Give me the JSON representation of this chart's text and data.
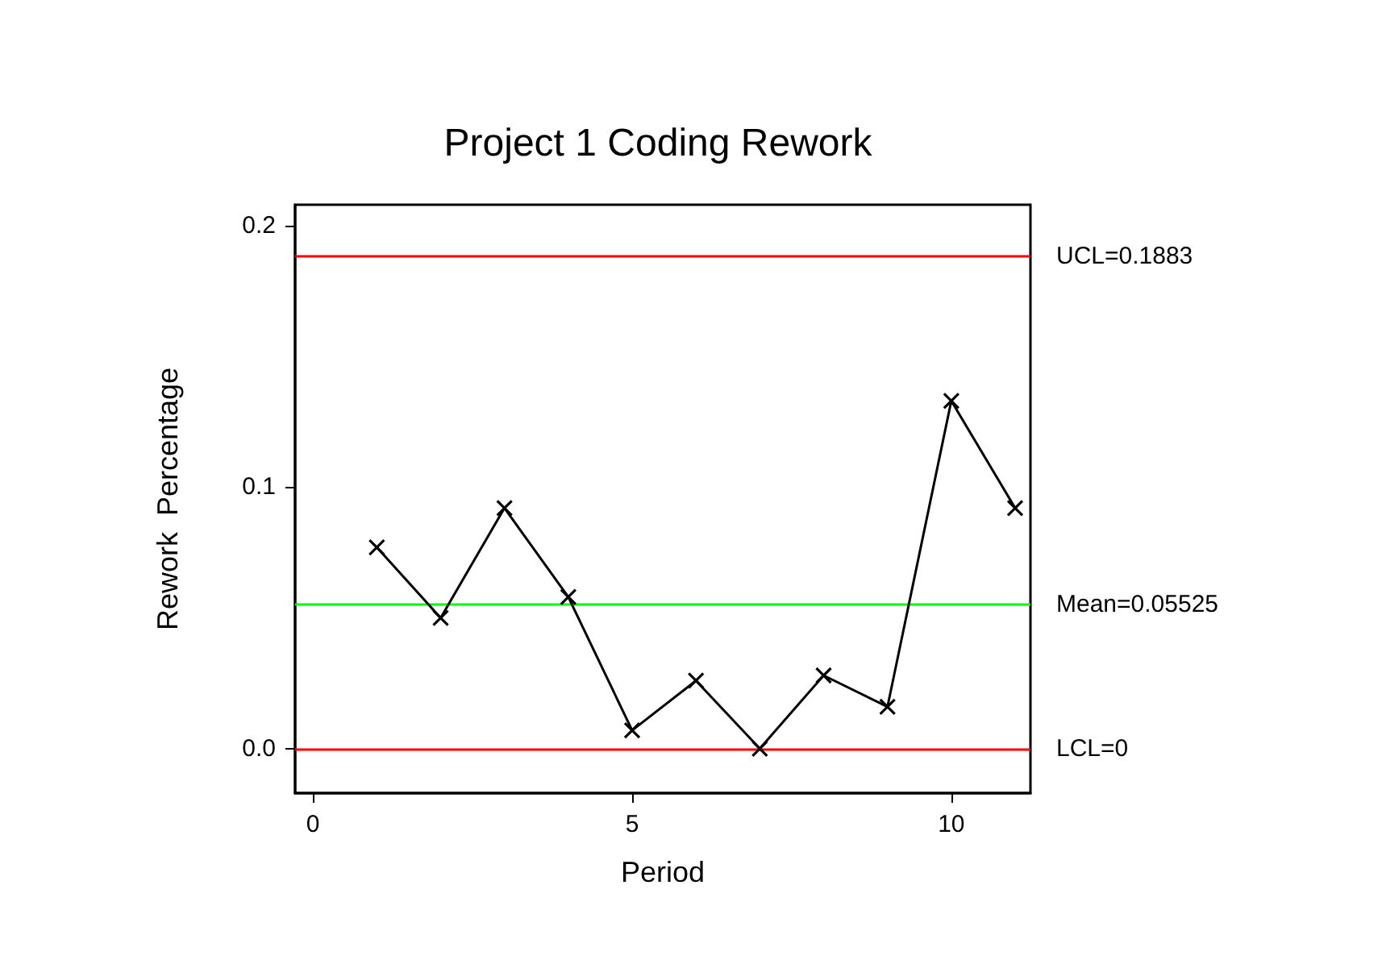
{
  "chart_data": {
    "type": "line",
    "title": "Project 1 Coding Rework",
    "xlabel": "Period",
    "ylabel": "Rework  Percentage",
    "x": [
      1,
      2,
      3,
      4,
      5,
      6,
      7,
      8,
      9,
      10,
      11
    ],
    "series": [
      {
        "color": "#000000",
        "values": [
          0.077,
          0.05,
          0.092,
          0.058,
          0.007,
          0.026,
          0.0,
          0.028,
          0.016,
          0.133,
          0.092
        ]
      }
    ],
    "xlim": [
      -0.28,
      11.24
    ],
    "xticks": [
      0,
      5,
      10
    ],
    "ylim": [
      -0.017,
      0.208
    ],
    "yticks": [
      {
        "value": 0,
        "label": "0.0"
      },
      {
        "value": 0.1,
        "label": "0.1"
      },
      {
        "value": 0.2,
        "label": "0.2"
      }
    ],
    "ref_lines": [
      {
        "axis": "y",
        "value": 0.1883,
        "label": "UCL=0.1883",
        "color": "#ff0000"
      },
      {
        "axis": "y",
        "value": 0.05525,
        "label": "Mean=0.05525",
        "color": "#00ff00"
      },
      {
        "axis": "y",
        "value": 0,
        "label": "LCL=0",
        "color": "#ff0000"
      }
    ],
    "grid": false,
    "marker": "cross",
    "line_style": "solid"
  }
}
